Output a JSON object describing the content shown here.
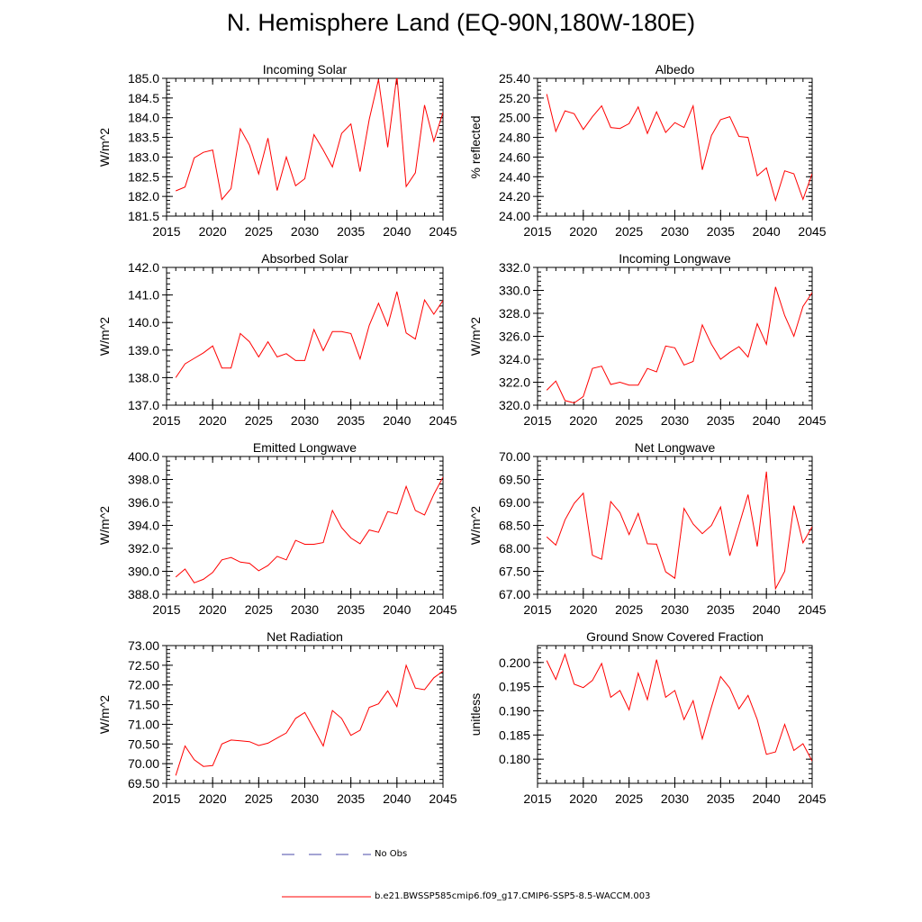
{
  "title": "N. Hemisphere Land (EQ-90N,180W-180E)",
  "legend": {
    "obs_label": "No Obs",
    "obs_color": "#4a4aaa",
    "model_label": "b.e21.BWSSP585cmip6.f09_g17.CMIP6-SSP5-8.5-WACCM.003",
    "model_color": "#ff0000"
  },
  "chart_data": [
    {
      "type": "line",
      "title": "Incoming Solar",
      "ylabel": "W/m^2",
      "xlim": [
        2015,
        2045
      ],
      "ylim": [
        181.5,
        185.0
      ],
      "ytick_labels": [
        "181.5",
        "182.0",
        "182.5",
        "183.0",
        "183.5",
        "184.0",
        "184.5",
        "185.0"
      ],
      "xtick_labels": [
        "2015",
        "2020",
        "2025",
        "2030",
        "2035",
        "2040",
        "2045"
      ],
      "series": [
        {
          "name": "b.e21.BWSSP585cmip6.f09_g17.CMIP6-SSP5-8.5-WACCM.003",
          "x": [
            2016,
            2017,
            2018,
            2019,
            2020,
            2021,
            2022,
            2023,
            2024,
            2025,
            2026,
            2027,
            2028,
            2029,
            2030,
            2031,
            2032,
            2033,
            2034,
            2035,
            2036,
            2037,
            2038,
            2039,
            2040,
            2041,
            2042,
            2043,
            2044,
            2045
          ],
          "y": [
            182.14,
            182.24,
            182.98,
            183.12,
            183.18,
            181.92,
            182.2,
            183.72,
            183.3,
            182.57,
            183.48,
            182.15,
            183.0,
            182.27,
            182.45,
            183.57,
            183.18,
            182.75,
            183.6,
            183.84,
            182.63,
            183.96,
            184.97,
            183.25,
            185.07,
            182.25,
            182.6,
            184.32,
            183.4,
            184.13
          ]
        }
      ]
    },
    {
      "type": "line",
      "title": "Albedo",
      "ylabel": "% reflected",
      "xlim": [
        2015,
        2045
      ],
      "ylim": [
        24.0,
        25.4
      ],
      "ytick_labels": [
        "24.00",
        "24.20",
        "24.40",
        "24.60",
        "24.80",
        "25.00",
        "25.20",
        "25.40"
      ],
      "xtick_labels": [
        "2015",
        "2020",
        "2025",
        "2030",
        "2035",
        "2040",
        "2045"
      ],
      "series": [
        {
          "name": "b.e21.BWSSP585cmip6.f09_g17.CMIP6-SSP5-8.5-WACCM.003",
          "x": [
            2016,
            2017,
            2018,
            2019,
            2020,
            2021,
            2022,
            2023,
            2024,
            2025,
            2026,
            2027,
            2028,
            2029,
            2030,
            2031,
            2032,
            2033,
            2034,
            2035,
            2036,
            2037,
            2038,
            2039,
            2040,
            2041,
            2042,
            2043,
            2044,
            2045
          ],
          "y": [
            25.24,
            24.86,
            25.07,
            25.04,
            24.88,
            25.01,
            25.12,
            24.9,
            24.89,
            24.94,
            25.11,
            24.84,
            25.06,
            24.85,
            24.95,
            24.9,
            25.12,
            24.47,
            24.82,
            24.98,
            25.01,
            24.81,
            24.8,
            24.41,
            24.49,
            24.16,
            24.46,
            24.43,
            24.17,
            24.43
          ]
        }
      ]
    },
    {
      "type": "line",
      "title": "Absorbed Solar",
      "ylabel": "W/m^2",
      "xlim": [
        2015,
        2045
      ],
      "ylim": [
        137.0,
        142.0
      ],
      "ytick_labels": [
        "137.0",
        "138.0",
        "139.0",
        "140.0",
        "141.0",
        "142.0"
      ],
      "xtick_labels": [
        "2015",
        "2020",
        "2025",
        "2030",
        "2035",
        "2040",
        "2045"
      ],
      "series": [
        {
          "name": "b.e21.BWSSP585cmip6.f09_g17.CMIP6-SSP5-8.5-WACCM.003",
          "x": [
            2016,
            2017,
            2018,
            2019,
            2020,
            2021,
            2022,
            2023,
            2024,
            2025,
            2026,
            2027,
            2028,
            2029,
            2030,
            2031,
            2032,
            2033,
            2034,
            2035,
            2036,
            2037,
            2038,
            2039,
            2040,
            2041,
            2042,
            2043,
            2044,
            2045
          ],
          "y": [
            138.0,
            138.5,
            138.7,
            138.9,
            139.15,
            138.35,
            138.35,
            139.6,
            139.3,
            138.75,
            139.3,
            138.75,
            138.87,
            138.62,
            138.62,
            139.75,
            138.98,
            139.67,
            139.67,
            139.6,
            138.68,
            139.9,
            140.7,
            139.88,
            141.12,
            139.62,
            139.4,
            140.82,
            140.3,
            140.8
          ]
        }
      ]
    },
    {
      "type": "line",
      "title": "Incoming Longwave",
      "ylabel": "W/m^2",
      "xlim": [
        2015,
        2045
      ],
      "ylim": [
        320.0,
        332.0
      ],
      "ytick_labels": [
        "320.0",
        "322.0",
        "324.0",
        "326.0",
        "328.0",
        "330.0",
        "332.0"
      ],
      "xtick_labels": [
        "2015",
        "2020",
        "2025",
        "2030",
        "2035",
        "2040",
        "2045"
      ],
      "series": [
        {
          "name": "b.e21.BWSSP585cmip6.f09_g17.CMIP6-SSP5-8.5-WACCM.003",
          "x": [
            2016,
            2017,
            2018,
            2019,
            2020,
            2021,
            2022,
            2023,
            2024,
            2025,
            2026,
            2027,
            2028,
            2029,
            2030,
            2031,
            2032,
            2033,
            2034,
            2035,
            2036,
            2037,
            2038,
            2039,
            2040,
            2041,
            2042,
            2043,
            2044,
            2045
          ],
          "y": [
            321.3,
            322.1,
            320.4,
            320.2,
            320.75,
            323.2,
            323.4,
            321.8,
            322.0,
            321.75,
            321.75,
            323.2,
            322.9,
            325.15,
            325.0,
            323.5,
            323.8,
            327.0,
            325.3,
            324.0,
            324.6,
            325.1,
            324.2,
            327.1,
            325.3,
            330.3,
            327.8,
            326.0,
            328.6,
            329.8
          ]
        }
      ]
    },
    {
      "type": "line",
      "title": "Emitted Longwave",
      "ylabel": "W/m^2",
      "xlim": [
        2015,
        2045
      ],
      "ylim": [
        388.0,
        400.0
      ],
      "ytick_labels": [
        "388.0",
        "390.0",
        "392.0",
        "394.0",
        "396.0",
        "398.0",
        "400.0"
      ],
      "xtick_labels": [
        "2015",
        "2020",
        "2025",
        "2030",
        "2035",
        "2040",
        "2045"
      ],
      "series": [
        {
          "name": "b.e21.BWSSP585cmip6.f09_g17.CMIP6-SSP5-8.5-WACCM.003",
          "x": [
            2016,
            2017,
            2018,
            2019,
            2020,
            2021,
            2022,
            2023,
            2024,
            2025,
            2026,
            2027,
            2028,
            2029,
            2030,
            2031,
            2032,
            2033,
            2034,
            2035,
            2036,
            2037,
            2038,
            2039,
            2040,
            2041,
            2042,
            2043,
            2044,
            2045
          ],
          "y": [
            389.5,
            390.2,
            389.0,
            389.3,
            389.9,
            391.0,
            391.2,
            390.8,
            390.7,
            390.05,
            390.5,
            391.3,
            391.0,
            392.7,
            392.35,
            392.35,
            392.5,
            395.3,
            393.8,
            392.9,
            392.4,
            393.6,
            393.4,
            395.2,
            395.0,
            397.4,
            395.3,
            394.9,
            396.7,
            398.2
          ]
        }
      ]
    },
    {
      "type": "line",
      "title": "Net Longwave",
      "ylabel": "W/m^2",
      "xlim": [
        2015,
        2045
      ],
      "ylim": [
        67.0,
        70.0
      ],
      "ytick_labels": [
        "67.00",
        "67.50",
        "68.00",
        "68.50",
        "69.00",
        "69.50",
        "70.00"
      ],
      "xtick_labels": [
        "2015",
        "2020",
        "2025",
        "2030",
        "2035",
        "2040",
        "2045"
      ],
      "series": [
        {
          "name": "b.e21.BWSSP585cmip6.f09_g17.CMIP6-SSP5-8.5-WACCM.003",
          "x": [
            2016,
            2017,
            2018,
            2019,
            2020,
            2021,
            2022,
            2023,
            2024,
            2025,
            2026,
            2027,
            2028,
            2029,
            2030,
            2031,
            2032,
            2033,
            2034,
            2035,
            2036,
            2037,
            2038,
            2039,
            2040,
            2041,
            2042,
            2043,
            2044,
            2045
          ],
          "y": [
            68.25,
            68.07,
            68.62,
            68.98,
            69.2,
            67.85,
            67.76,
            69.02,
            68.78,
            68.3,
            68.76,
            68.1,
            68.09,
            67.49,
            67.35,
            68.87,
            68.53,
            68.32,
            68.5,
            68.9,
            67.84,
            68.5,
            69.17,
            68.04,
            69.67,
            67.12,
            67.5,
            68.93,
            68.12,
            68.47
          ]
        }
      ]
    },
    {
      "type": "line",
      "title": "Net Radiation",
      "ylabel": "W/m^2",
      "xlim": [
        2015,
        2045
      ],
      "ylim": [
        69.5,
        73.0
      ],
      "ytick_labels": [
        "69.50",
        "70.00",
        "70.50",
        "71.00",
        "71.50",
        "72.00",
        "72.50",
        "73.00"
      ],
      "xtick_labels": [
        "2015",
        "2020",
        "2025",
        "2030",
        "2035",
        "2040",
        "2045"
      ],
      "series": [
        {
          "name": "b.e21.BWSSP585cmip6.f09_g17.CMIP6-SSP5-8.5-WACCM.003",
          "x": [
            2016,
            2017,
            2018,
            2019,
            2020,
            2021,
            2022,
            2023,
            2024,
            2025,
            2026,
            2027,
            2028,
            2029,
            2030,
            2031,
            2032,
            2033,
            2034,
            2035,
            2036,
            2037,
            2038,
            2039,
            2040,
            2041,
            2042,
            2043,
            2044,
            2045
          ],
          "y": [
            69.7,
            70.45,
            70.1,
            69.93,
            69.95,
            70.5,
            70.6,
            70.58,
            70.56,
            70.46,
            70.52,
            70.65,
            70.78,
            71.15,
            71.3,
            70.88,
            70.45,
            71.35,
            71.15,
            70.72,
            70.85,
            71.43,
            71.52,
            71.85,
            71.45,
            72.5,
            71.92,
            71.88,
            72.18,
            72.35
          ]
        }
      ]
    },
    {
      "type": "line",
      "title": "Ground Snow Covered Fraction",
      "ylabel": "unitless",
      "xlim": [
        2015,
        2045
      ],
      "ylim": [
        0.175,
        0.2035
      ],
      "ytick_labels": [
        "0.180",
        "0.185",
        "0.190",
        "0.195",
        "0.200"
      ],
      "xtick_labels": [
        "2015",
        "2020",
        "2025",
        "2030",
        "2035",
        "2040",
        "2045"
      ],
      "series": [
        {
          "name": "b.e21.BWSSP585cmip6.f09_g17.CMIP6-SSP5-8.5-WACCM.003",
          "x": [
            2016,
            2017,
            2018,
            2019,
            2020,
            2021,
            2022,
            2023,
            2024,
            2025,
            2026,
            2027,
            2028,
            2029,
            2030,
            2031,
            2032,
            2033,
            2034,
            2035,
            2036,
            2037,
            2038,
            2039,
            2040,
            2041,
            2042,
            2043,
            2044,
            2045
          ],
          "y": [
            0.2004,
            0.1965,
            0.2017,
            0.1955,
            0.1948,
            0.1963,
            0.1998,
            0.1928,
            0.1942,
            0.1902,
            0.1978,
            0.1923,
            0.2006,
            0.1928,
            0.1942,
            0.1882,
            0.1921,
            0.1842,
            0.1908,
            0.1971,
            0.1947,
            0.1904,
            0.1932,
            0.1882,
            0.181,
            0.1815,
            0.1872,
            0.1818,
            0.1832,
            0.1796
          ]
        }
      ]
    }
  ]
}
